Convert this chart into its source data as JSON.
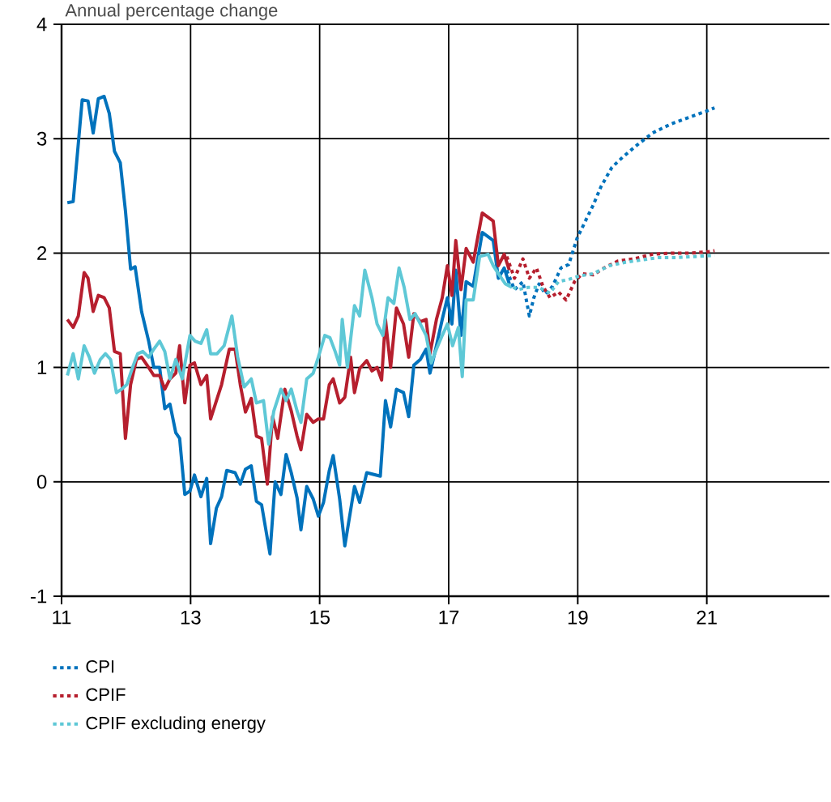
{
  "chart_data": {
    "type": "line",
    "title": "Annual percentage change",
    "xlim": [
      11,
      22.9
    ],
    "xticks": [
      11,
      13,
      15,
      17,
      19,
      21
    ],
    "ylim": [
      -1,
      4
    ],
    "yticks": [
      -1,
      0,
      1,
      2,
      3,
      4
    ],
    "grid": true,
    "legend": "bottom",
    "series": [
      {
        "color": "#0072bc",
        "line_style": "solid",
        "x": [
          11.09,
          11.18,
          11.32,
          11.41,
          11.49,
          11.57,
          11.66,
          11.74,
          11.82,
          11.91,
          11.99,
          12.07,
          12.14,
          12.24,
          12.35,
          12.43,
          12.52,
          12.6,
          12.68,
          12.77,
          12.83,
          12.91,
          12.99,
          13.06,
          13.16,
          13.25,
          13.31,
          13.4,
          13.48,
          13.56,
          13.69,
          13.77,
          13.85,
          13.94,
          14.02,
          14.1,
          14.23,
          14.31,
          14.4,
          14.48,
          14.56,
          14.65,
          14.71,
          14.8,
          14.9,
          14.98,
          15.06,
          15.15,
          15.21,
          15.31,
          15.39,
          15.54,
          15.62,
          15.73,
          15.94,
          16.02,
          16.1,
          16.19,
          16.3,
          16.38,
          16.46,
          16.56,
          16.65,
          16.71,
          16.81,
          16.9,
          16.98,
          17.05,
          17.11,
          17.19,
          17.27,
          17.38,
          17.52,
          17.69,
          17.77,
          17.86,
          17.94
        ],
        "values": [
          2.44,
          2.45,
          3.34,
          3.33,
          3.05,
          3.35,
          3.37,
          3.22,
          2.89,
          2.79,
          2.37,
          1.86,
          1.88,
          1.49,
          1.23,
          1.0,
          1.0,
          0.64,
          0.68,
          0.43,
          0.38,
          -0.11,
          -0.08,
          0.06,
          -0.13,
          0.03,
          -0.54,
          -0.23,
          -0.13,
          0.1,
          0.08,
          -0.02,
          0.11,
          0.14,
          -0.17,
          -0.2,
          -0.63,
          0.0,
          -0.11,
          0.24,
          0.08,
          -0.14,
          -0.42,
          -0.04,
          -0.15,
          -0.3,
          -0.18,
          0.1,
          0.23,
          -0.15,
          -0.56,
          -0.04,
          -0.18,
          0.08,
          0.05,
          0.71,
          0.48,
          0.81,
          0.78,
          0.57,
          1.02,
          1.07,
          1.16,
          0.95,
          1.19,
          1.42,
          1.61,
          1.38,
          1.85,
          1.28,
          1.75,
          1.71,
          2.18,
          2.11,
          1.78,
          1.87,
          1.73
        ]
      },
      {
        "color": "#b61f2e",
        "line_style": "solid",
        "x": [
          11.09,
          11.18,
          11.26,
          11.35,
          11.41,
          11.49,
          11.57,
          11.66,
          11.74,
          11.82,
          11.91,
          11.99,
          12.07,
          12.16,
          12.24,
          12.35,
          12.43,
          12.52,
          12.6,
          12.68,
          12.77,
          12.83,
          12.91,
          12.99,
          13.06,
          13.16,
          13.25,
          13.31,
          13.4,
          13.48,
          13.6,
          13.69,
          13.77,
          13.85,
          13.94,
          14.02,
          14.1,
          14.19,
          14.27,
          14.35,
          14.46,
          14.56,
          14.65,
          14.71,
          14.8,
          14.9,
          14.98,
          15.06,
          15.15,
          15.21,
          15.31,
          15.39,
          15.48,
          15.54,
          15.62,
          15.73,
          15.81,
          15.89,
          15.96,
          16.02,
          16.1,
          16.19,
          16.3,
          16.38,
          16.46,
          16.56,
          16.65,
          16.71,
          16.81,
          16.9,
          16.98,
          17.05,
          17.11,
          17.19,
          17.27,
          17.38,
          17.52,
          17.69,
          17.77,
          17.86,
          17.94
        ],
        "values": [
          1.42,
          1.35,
          1.45,
          1.83,
          1.78,
          1.49,
          1.63,
          1.61,
          1.52,
          1.14,
          1.12,
          0.38,
          0.85,
          1.07,
          1.09,
          1.0,
          0.93,
          0.93,
          0.81,
          0.9,
          0.95,
          1.19,
          0.69,
          1.02,
          1.04,
          0.85,
          0.93,
          0.55,
          0.71,
          0.85,
          1.16,
          1.16,
          0.85,
          0.61,
          0.73,
          0.4,
          0.38,
          -0.02,
          0.57,
          0.38,
          0.81,
          0.62,
          0.4,
          0.28,
          0.59,
          0.52,
          0.55,
          0.55,
          0.85,
          0.9,
          0.69,
          0.74,
          1.09,
          0.78,
          0.99,
          1.06,
          0.97,
          1.0,
          0.89,
          1.42,
          1.0,
          1.52,
          1.38,
          1.09,
          1.47,
          1.4,
          1.42,
          1.12,
          1.42,
          1.61,
          1.89,
          1.63,
          2.11,
          1.68,
          2.04,
          1.92,
          2.35,
          2.28,
          1.89,
          1.99,
          1.85
        ]
      },
      {
        "color": "#5ec8d6",
        "line_style": "solid",
        "x": [
          11.09,
          11.18,
          11.26,
          11.35,
          11.43,
          11.51,
          11.6,
          11.68,
          11.76,
          11.85,
          11.93,
          12.01,
          12.1,
          12.18,
          12.26,
          12.35,
          12.43,
          12.52,
          12.6,
          12.68,
          12.77,
          12.87,
          12.99,
          13.07,
          13.16,
          13.25,
          13.31,
          13.41,
          13.52,
          13.64,
          13.73,
          13.83,
          13.94,
          14.02,
          14.13,
          14.21,
          14.29,
          14.4,
          14.48,
          14.56,
          14.65,
          14.71,
          14.8,
          14.9,
          14.98,
          15.08,
          15.16,
          15.24,
          15.31,
          15.35,
          15.43,
          15.54,
          15.62,
          15.7,
          15.81,
          15.89,
          15.98,
          16.06,
          16.15,
          16.23,
          16.31,
          16.4,
          16.48,
          16.56,
          16.65,
          16.73,
          16.81,
          16.9,
          16.98,
          17.06,
          17.15,
          17.21,
          17.27,
          17.38,
          17.48,
          17.61,
          17.69,
          17.77,
          17.88,
          17.98
        ],
        "values": [
          0.93,
          1.12,
          0.9,
          1.19,
          1.09,
          0.95,
          1.07,
          1.12,
          1.07,
          0.78,
          0.81,
          0.85,
          1.0,
          1.12,
          1.14,
          1.09,
          1.16,
          1.23,
          1.14,
          0.9,
          1.07,
          0.9,
          1.28,
          1.23,
          1.21,
          1.33,
          1.12,
          1.12,
          1.19,
          1.45,
          1.09,
          0.83,
          0.9,
          0.69,
          0.71,
          0.33,
          0.62,
          0.81,
          0.71,
          0.81,
          0.62,
          0.52,
          0.9,
          0.95,
          1.09,
          1.28,
          1.26,
          1.14,
          1.02,
          1.42,
          1.0,
          1.54,
          1.45,
          1.85,
          1.61,
          1.38,
          1.28,
          1.61,
          1.56,
          1.87,
          1.7,
          1.42,
          1.47,
          1.38,
          1.28,
          1.04,
          1.16,
          1.28,
          1.38,
          1.19,
          1.35,
          0.92,
          1.59,
          1.59,
          1.97,
          1.99,
          1.89,
          1.82,
          1.73,
          1.7
        ]
      },
      {
        "name": "CPI",
        "color": "#0072bc",
        "line_style": "dotted",
        "x": [
          17.9,
          18.02,
          18.15,
          18.25,
          18.32,
          18.4,
          18.5,
          18.61,
          18.74,
          18.86,
          18.99,
          19.11,
          19.24,
          19.36,
          19.53,
          19.7,
          19.91,
          20.16,
          20.45,
          20.74,
          20.99,
          21.12
        ],
        "values": [
          1.85,
          1.68,
          1.75,
          1.45,
          1.61,
          1.73,
          1.64,
          1.71,
          1.87,
          1.9,
          2.13,
          2.27,
          2.42,
          2.58,
          2.75,
          2.84,
          2.94,
          3.05,
          3.13,
          3.19,
          3.24,
          3.27
        ]
      },
      {
        "name": "CPIF",
        "color": "#b61f2e",
        "line_style": "dotted",
        "x": [
          17.9,
          18.02,
          18.15,
          18.25,
          18.36,
          18.46,
          18.57,
          18.7,
          18.82,
          18.95,
          19.07,
          19.24,
          19.41,
          19.62,
          19.87,
          20.16,
          20.45,
          20.74,
          20.99,
          21.12
        ],
        "values": [
          1.97,
          1.78,
          1.95,
          1.78,
          1.87,
          1.71,
          1.61,
          1.66,
          1.59,
          1.75,
          1.82,
          1.81,
          1.87,
          1.93,
          1.95,
          1.99,
          2.0,
          2.0,
          2.01,
          2.02
        ]
      },
      {
        "name": "CPIF excluding energy",
        "color": "#5ec8d6",
        "line_style": "dotted",
        "x": [
          17.9,
          18.07,
          18.23,
          18.4,
          18.57,
          18.7,
          18.86,
          19.03,
          19.24,
          19.49,
          19.74,
          19.99,
          20.24,
          20.53,
          20.82,
          21.12
        ],
        "values": [
          1.73,
          1.68,
          1.7,
          1.7,
          1.65,
          1.75,
          1.77,
          1.8,
          1.82,
          1.89,
          1.92,
          1.94,
          1.96,
          1.96,
          1.97,
          1.98
        ]
      }
    ]
  }
}
